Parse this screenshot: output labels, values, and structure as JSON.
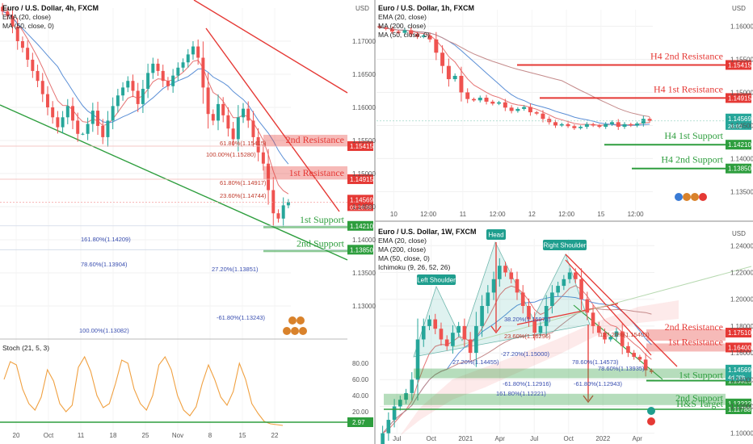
{
  "colors": {
    "red": "#e53935",
    "green": "#2e9e3e",
    "ema": "#e57373",
    "ma50": "#5b8fd6",
    "ma200": "#c48a8a",
    "candle_up": "#26a69a",
    "candle_down": "#ef5350",
    "stoch": "#f0a040",
    "fib": "#3a4fb0",
    "badge_teal": "#1f9e8e"
  },
  "chart_data": [
    {
      "type": "candlestick",
      "panel": "left",
      "header": [
        "Euro / U.S. Dollar, 4h, FXCM",
        "EMA (20, close)",
        "MA (50, close, 0)"
      ],
      "currency_label": "USD",
      "ylim": [
        1.125,
        1.175
      ],
      "y_ticks": [
        "1.17000",
        "1.16500",
        "1.16000",
        "1.15500",
        "1.15000",
        "1.14500",
        "1.14000",
        "1.13500",
        "1.13000"
      ],
      "x_ticks": [
        "20",
        "Oct",
        "11",
        "18",
        "25",
        "Nov",
        "8",
        "15",
        "22"
      ],
      "close": [
        1.1745,
        1.1738,
        1.1722,
        1.17,
        1.169,
        1.1672,
        1.1655,
        1.164,
        1.162,
        1.16,
        1.1585,
        1.157,
        1.1585,
        1.1602,
        1.158,
        1.156,
        1.156,
        1.1575,
        1.1595,
        1.1572,
        1.1555,
        1.158,
        1.1602,
        1.1618,
        1.163,
        1.164,
        1.1625,
        1.1605,
        1.1628,
        1.1652,
        1.1666,
        1.1655,
        1.164,
        1.1632,
        1.1648,
        1.166,
        1.1668,
        1.168,
        1.1692,
        1.1675,
        1.163,
        1.159,
        1.158,
        1.1605,
        1.1588,
        1.1568,
        1.1552,
        1.1585,
        1.1598,
        1.158,
        1.1555,
        1.1532,
        1.1515,
        1.1475,
        1.144,
        1.1432,
        1.1452,
        1.1457
      ],
      "levels": [
        {
          "label": "2nd Resistance",
          "value": 1.15415,
          "tag": "1.15415"
        },
        {
          "label": "1st Resistance",
          "value": 1.14915,
          "tag": "1.14915"
        },
        {
          "label": "1st Support",
          "value": 1.1421,
          "tag": "1.14210"
        },
        {
          "label": "2nd Support",
          "value": 1.1385,
          "tag": "1.13850"
        }
      ],
      "current_price": {
        "value": 1.14569,
        "tag": "1.14569",
        "countdown": "03:26:09"
      },
      "fib_labels": [
        "61.80%(1.15415)",
        "100.00%(1.15280)",
        "61.80%(1.14917)",
        "23.60%(1.14744)",
        "161.80%(1.14209)",
        "78.60%(1.13904)",
        "27.20%(1.13851)",
        "-61.80%(1.13243)",
        "100.00%(1.13082)"
      ],
      "stochastic": {
        "title": "Stoch (21, 5, 3)",
        "y_ticks": [
          "80.00",
          "60.00",
          "40.00",
          "20.00"
        ],
        "value_tag": "2.97",
        "values": [
          60,
          82,
          78,
          48,
          30,
          22,
          38,
          72,
          58,
          30,
          20,
          28,
          75,
          88,
          70,
          40,
          25,
          30,
          55,
          84,
          80,
          48,
          30,
          22,
          40,
          78,
          88,
          72,
          40,
          22,
          15,
          26,
          55,
          78,
          60,
          38,
          28,
          45,
          80,
          60,
          30,
          18,
          8,
          5,
          4,
          3
        ]
      }
    },
    {
      "type": "candlestick",
      "panel": "top-right",
      "header": [
        "Euro / U.S. Dollar, 1h, FXCM",
        "EMA (20, close)",
        "MA (200, close)",
        "MA (50, close, 0)"
      ],
      "currency_label": "USD",
      "ylim": [
        1.132,
        1.1625
      ],
      "y_ticks": [
        "1.16000",
        "1.15500",
        "1.15000",
        "1.14500",
        "1.14000",
        "1.13500"
      ],
      "x_ticks": [
        "10",
        "12:00",
        "11",
        "12:00",
        "12",
        "12:00",
        "15",
        "12:00"
      ],
      "close": [
        1.1598,
        1.1596,
        1.1592,
        1.159,
        1.1594,
        1.1588,
        1.1584,
        1.1586,
        1.158,
        1.156,
        1.154,
        1.152,
        1.1525,
        1.15,
        1.149,
        1.1488,
        1.1492,
        1.1486,
        1.1483,
        1.1485,
        1.1477,
        1.1472,
        1.1475,
        1.1478,
        1.147,
        1.1468,
        1.146,
        1.1455,
        1.145,
        1.1452,
        1.1449,
        1.1446,
        1.1448,
        1.1452,
        1.145,
        1.1448,
        1.1452,
        1.1455,
        1.1448,
        1.1452,
        1.145,
        1.1453,
        1.146,
        1.1457
      ],
      "levels": [
        {
          "label": "H4 2nd Resistance",
          "value": 1.15415,
          "tag": "1.15415"
        },
        {
          "label": "H4 1st Resistance",
          "value": 1.14915,
          "tag": "1.14915"
        },
        {
          "label": "H4 1st Support",
          "value": 1.1421,
          "tag": "1.14210"
        },
        {
          "label": "H4 2nd Support",
          "value": 1.1385,
          "tag": "1.13850"
        }
      ],
      "current_price": {
        "value": 1.14569,
        "tag": "1.14569",
        "countdown": "26:09"
      }
    },
    {
      "type": "candlestick",
      "panel": "bottom-right",
      "header": [
        "Euro / U.S. Dollar, 1W, FXCM",
        "EMA (20, close)",
        "MA (200, close)",
        "MA (50, close, 0)",
        "Ichimoku (9, 26, 52, 26)"
      ],
      "currency_label": "USD",
      "ylim": [
        1.098,
        1.245
      ],
      "y_ticks": [
        "1.24000",
        "1.22000",
        "1.20000",
        "1.18000",
        "1.16000",
        "1.14000",
        "1.12000",
        "1.10000"
      ],
      "x_ticks": [
        "Jul",
        "Oct",
        "2021",
        "Apr",
        "Jul",
        "Oct",
        "2022",
        "Apr"
      ],
      "close": [
        1.1,
        1.11,
        1.12,
        1.125,
        1.13,
        1.14,
        1.17,
        1.18,
        1.185,
        1.178,
        1.17,
        1.165,
        1.175,
        1.18,
        1.17,
        1.16,
        1.18,
        1.195,
        1.205,
        1.215,
        1.225,
        1.22,
        1.215,
        1.205,
        1.195,
        1.185,
        1.175,
        1.18,
        1.195,
        1.205,
        1.21,
        1.215,
        1.22,
        1.215,
        1.2,
        1.19,
        1.18,
        1.175,
        1.17,
        1.172,
        1.176,
        1.165,
        1.16,
        1.157,
        1.155,
        1.147,
        1.1457
      ],
      "pattern_labels": {
        "left": "Left Shoulder",
        "head": "Head",
        "right": "Right Shoulder"
      },
      "levels": [
        {
          "label": "2nd Resistance",
          "value": 1.1751,
          "tag": "1.17510"
        },
        {
          "label": "1st Resistance",
          "value": 1.164,
          "tag": "1.16400"
        },
        {
          "label": "1st Support",
          "value": 1.13925,
          "tag": "1.13925"
        },
        {
          "label": "2nd Support",
          "value": 1.12222,
          "tag": "1.12222"
        },
        {
          "label": "H&S Target",
          "value": 1.11788,
          "tag": "1.11788"
        }
      ],
      "current_price": {
        "value": 1.14569,
        "tag": "1.14569",
        "countdown": "4d 20h"
      },
      "fib_labels": [
        "38.20%(1.15975)",
        "23.60%(1.16296)",
        "127.20%(1.15403)",
        "-27.20%(1.15000)",
        "27.20%(1.14455)",
        "78.60%(1.14573)",
        "78.60%(1.13935)",
        "-61.80%(1.12916)",
        "-61.80%(1.12943)",
        "161.80%(1.12221)"
      ]
    }
  ]
}
